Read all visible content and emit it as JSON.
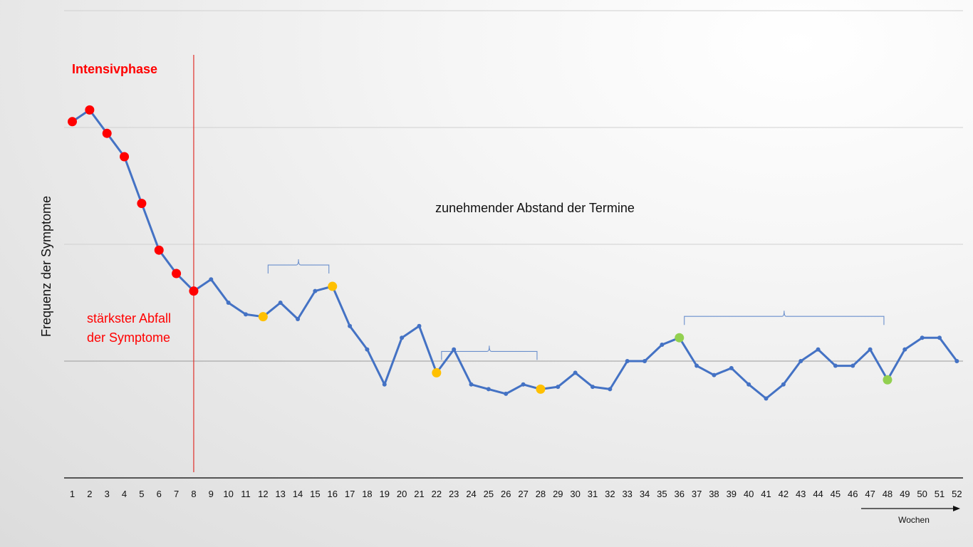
{
  "chart_data": {
    "type": "line",
    "title": "",
    "xlabel": "",
    "ylabel": "Frequenz der Symptome",
    "x_unit_label": "Wochen",
    "grid": true,
    "legend": "none",
    "categories": [
      "1",
      "2",
      "3",
      "4",
      "5",
      "6",
      "7",
      "8",
      "9",
      "10",
      "11",
      "12",
      "13",
      "14",
      "15",
      "16",
      "17",
      "18",
      "19",
      "20",
      "21",
      "22",
      "23",
      "24",
      "25",
      "26",
      "27",
      "28",
      "29",
      "30",
      "31",
      "32",
      "33",
      "34",
      "35",
      "36",
      "37",
      "38",
      "39",
      "40",
      "41",
      "42",
      "43",
      "44",
      "45",
      "46",
      "47",
      "48",
      "49",
      "50",
      "51",
      "52"
    ],
    "ylim": [
      0,
      4
    ],
    "series": [
      {
        "values": [
          3.05,
          3.15,
          2.95,
          2.75,
          2.35,
          1.95,
          1.75,
          1.6,
          1.7,
          1.5,
          1.4,
          1.38,
          1.5,
          1.36,
          1.6,
          1.64,
          1.3,
          1.1,
          0.8,
          1.2,
          1.3,
          0.9,
          1.1,
          0.8,
          0.76,
          0.72,
          0.8,
          0.76,
          0.78,
          0.9,
          0.78,
          0.76,
          1.0,
          1.0,
          1.14,
          1.2,
          0.96,
          0.88,
          0.94,
          0.8,
          0.68,
          0.8,
          1.0,
          1.1,
          0.96,
          0.96,
          1.1,
          0.84,
          1.1,
          1.2,
          1.2,
          1.0
        ]
      }
    ],
    "highlighted_points": [
      {
        "week": 1,
        "color": "#ff0000"
      },
      {
        "week": 2,
        "color": "#ff0000"
      },
      {
        "week": 3,
        "color": "#ff0000"
      },
      {
        "week": 4,
        "color": "#ff0000"
      },
      {
        "week": 5,
        "color": "#ff0000"
      },
      {
        "week": 6,
        "color": "#ff0000"
      },
      {
        "week": 7,
        "color": "#ff0000"
      },
      {
        "week": 8,
        "color": "#ff0000"
      },
      {
        "week": 12,
        "color": "#ffc000"
      },
      {
        "week": 16,
        "color": "#ffc000"
      },
      {
        "week": 22,
        "color": "#ffc000"
      },
      {
        "week": 28,
        "color": "#ffc000"
      },
      {
        "week": 36,
        "color": "#92d050"
      },
      {
        "week": 48,
        "color": "#92d050"
      }
    ],
    "phase_divider_week": 8,
    "braces": [
      {
        "from_week": 12,
        "to_week": 16
      },
      {
        "from_week": 22,
        "to_week": 28
      },
      {
        "from_week": 36,
        "to_week": 48
      }
    ],
    "annotations": {
      "phase": "Intensivphase",
      "drop_line1": "stärkster Abfall",
      "drop_line2": "der Symptome",
      "spacing": "zunehmender Abstand der Termine"
    },
    "colors": {
      "line": "#4472c4",
      "marker": "#4472c4",
      "red": "#ff0000",
      "divider": "#e0302a",
      "brace": "#6a8fcc",
      "grid": "#d0d0d0",
      "axis": "#555555"
    }
  }
}
